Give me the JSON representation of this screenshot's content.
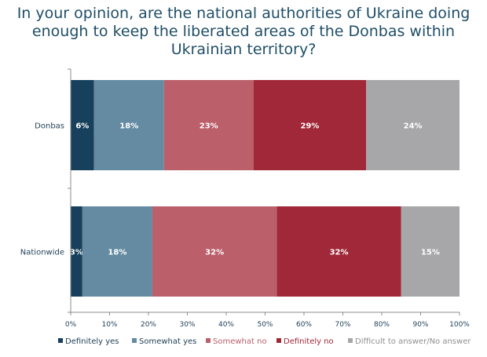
{
  "chart_data": {
    "type": "bar",
    "orientation": "horizontal",
    "stacked": true,
    "title": "In your opinion, are the national authorities of Ukraine doing enough to keep the liberated areas of the Donbas within Ukrainian territory?",
    "categories": [
      "Donbas",
      "Nationwide"
    ],
    "series": [
      {
        "name": "Definitely yes",
        "color": "#17405c",
        "values": [
          6,
          3
        ],
        "labels": [
          "6%",
          "3%"
        ]
      },
      {
        "name": "Somewhat yes",
        "color": "#658ba3",
        "values": [
          18,
          18
        ],
        "labels": [
          "18%",
          "18%"
        ]
      },
      {
        "name": "Somewhat no",
        "color": "#bb5f6b",
        "values": [
          23,
          32
        ],
        "labels": [
          "23%",
          "32%"
        ]
      },
      {
        "name": "Definitely no",
        "color": "#a12838",
        "values": [
          29,
          32
        ],
        "labels": [
          "29%",
          "32%"
        ]
      },
      {
        "name": "Difficult to answer/No answer",
        "color": "#a7a7a9",
        "values": [
          24,
          15
        ],
        "labels": [
          "24%",
          "15%"
        ]
      }
    ],
    "xlim": [
      0,
      100
    ],
    "xticks": [
      "0%",
      "10%",
      "20%",
      "30%",
      "40%",
      "50%",
      "60%",
      "70%",
      "80%",
      "90%",
      "100%"
    ],
    "legend_position": "bottom",
    "grid": false
  }
}
